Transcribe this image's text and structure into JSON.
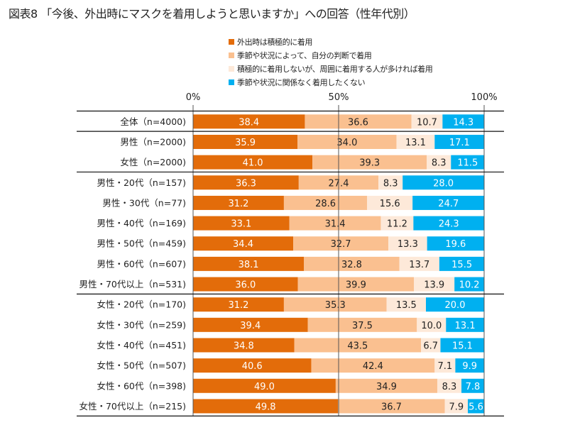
{
  "chart_data": {
    "type": "bar",
    "orientation": "horizontal",
    "stacked": true,
    "percent": true,
    "title": "図表8 「今後、外出時にマスクを着用しようと思いますか」への回答（性年代別）",
    "xlabel": "",
    "ylabel": "",
    "xlim": [
      0,
      100
    ],
    "x_ticks": [
      "0%",
      "50%",
      "100%"
    ],
    "legend_position": "top-center",
    "categories": [
      "全体（n=4000)",
      "男性（n=2000)",
      "女性（n=2000)",
      "男性・20代（n=157)",
      "男性・30代（n=77)",
      "男性・40代（n=169)",
      "男性・50代（n=459)",
      "男性・60代（n=607)",
      "男性・70代以上（n=531)",
      "女性・20代（n=170)",
      "女性・30代（n=259)",
      "女性・40代（n=451)",
      "女性・50代（n=507)",
      "女性・60代（n=398)",
      "女性・70代以上（n=215)"
    ],
    "group_breaks_after": [
      0,
      2,
      8,
      14
    ],
    "series": [
      {
        "name": "外出時は積極的に着用",
        "color": "#E36C0A",
        "label_color": "#ffffff",
        "values": [
          38.4,
          35.9,
          41.0,
          36.3,
          31.2,
          33.1,
          34.4,
          38.1,
          36.0,
          31.2,
          39.4,
          34.8,
          40.6,
          49.0,
          49.8
        ]
      },
      {
        "name": "季節や状況によって、自分の判断で着用",
        "color": "#FAC090",
        "label_color": "#222222",
        "values": [
          36.6,
          34.0,
          39.3,
          27.4,
          28.6,
          31.4,
          32.7,
          32.8,
          39.9,
          35.3,
          37.5,
          43.5,
          42.4,
          34.9,
          36.7
        ]
      },
      {
        "name": "積極的に着用しないが、周囲に着用する人が多ければ着用",
        "color": "#FDE9D9",
        "label_color": "#222222",
        "values": [
          10.7,
          13.1,
          8.3,
          8.3,
          15.6,
          11.2,
          13.3,
          13.7,
          13.9,
          13.5,
          10.0,
          6.7,
          7.1,
          8.3,
          7.9
        ]
      },
      {
        "name": "季節や状況に関係なく着用したくない",
        "color": "#00B0F0",
        "label_color": "#ffffff",
        "values": [
          14.3,
          17.1,
          11.5,
          28.0,
          24.7,
          24.3,
          19.6,
          15.5,
          10.2,
          20.0,
          13.1,
          15.1,
          9.9,
          7.8,
          5.6
        ]
      }
    ]
  }
}
